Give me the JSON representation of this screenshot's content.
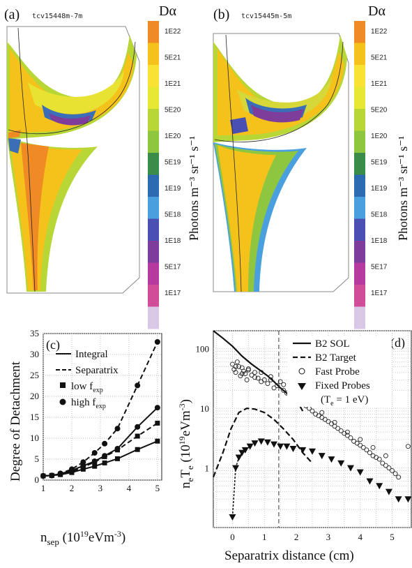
{
  "panel_a": {
    "label": "(a)",
    "shot": "tcv15448m-7m",
    "colorbar_title": "Dα",
    "colorbar_ticks": [
      "1E22",
      "5E21",
      "1E21",
      "5E20",
      "1E20",
      "5E19",
      "1E19",
      "5E18",
      "1E18",
      "5E17",
      "1E17"
    ],
    "colorbar_colors": [
      "#f08a24",
      "#f5c21b",
      "#f9e233",
      "#e6e833",
      "#b8d636",
      "#8ec63f",
      "#3a8c48",
      "#2c6bb2",
      "#4aa0de",
      "#4a4fb3",
      "#7e3c9b",
      "#b43aa0",
      "#d24d98",
      "#d9c9e6"
    ]
  },
  "panel_b": {
    "label": "(b)",
    "shot": "tcv15445m-5m",
    "colorbar_title": "Dα",
    "colorbar_ticks": [
      "1E22",
      "5E21",
      "1E21",
      "5E20",
      "1E20",
      "5E19",
      "1E19",
      "5E18",
      "1E18",
      "5E17",
      "1E17"
    ]
  },
  "colorbar_units": "Photons m⁻³ sr⁻¹ s⁻¹",
  "chart_data": [
    {
      "type": "line",
      "label": "(c)",
      "xlabel": "n_sep (10^19 eVm^-3)",
      "ylabel": "Degree of Detachment",
      "xlim": [
        1,
        5.15
      ],
      "ylim": [
        0,
        35
      ],
      "xticks": [
        1,
        2,
        3,
        4,
        5
      ],
      "yticks": [
        0,
        5,
        10,
        15,
        20,
        25,
        30,
        35
      ],
      "legend": [
        "Integral",
        "Separatrix",
        "low f_exp",
        "high f_exp"
      ],
      "series": [
        {
          "name": "high f_exp",
          "style": "dash",
          "marker": "circle",
          "x": [
            1,
            1.3,
            1.6,
            2.0,
            2.4,
            2.8,
            3.15,
            3.6,
            4.3,
            5.0
          ],
          "y": [
            1,
            1.1,
            1.6,
            2.6,
            4.3,
            6.5,
            8.7,
            12.3,
            22.6,
            33.0
          ]
        },
        {
          "name": "low f_exp",
          "style": "dash",
          "marker": "square",
          "x": [
            1,
            1.3,
            1.6,
            2.0,
            2.4,
            2.8,
            3.15,
            3.6,
            4.3,
            5.0
          ],
          "y": [
            1,
            1.1,
            1.4,
            2.0,
            3.1,
            4.3,
            5.6,
            7.2,
            10.5,
            13.6
          ]
        },
        {
          "name": "Integral",
          "style": "solid",
          "marker": "circle",
          "x": [
            1,
            1.3,
            1.6,
            2.0,
            2.4,
            2.8,
            3.15,
            3.6,
            4.3,
            5.0
          ],
          "y": [
            1,
            1.1,
            1.5,
            2.3,
            3.4,
            4.5,
            5.8,
            7.5,
            12.7,
            17.3
          ]
        },
        {
          "name": "Integral",
          "style": "solid",
          "marker": "square",
          "x": [
            1,
            1.3,
            1.6,
            2.0,
            2.4,
            2.8,
            3.15,
            3.6,
            4.3,
            5.0
          ],
          "y": [
            1,
            1.1,
            1.3,
            1.8,
            2.6,
            3.3,
            4.1,
            5.1,
            7.3,
            9.3
          ]
        }
      ]
    },
    {
      "type": "scatter",
      "label": "(d)",
      "xlabel": "Separatrix distance (cm)",
      "ylabel": "n_e T_e (10^19 eVm^-3)",
      "xlim": [
        -0.6,
        5.6
      ],
      "ylim_log": [
        0.1,
        200
      ],
      "xticks": [
        0,
        1,
        2,
        3,
        4,
        5
      ],
      "yticks": [
        1,
        10,
        100
      ],
      "scale_y": "log",
      "legend": [
        "B2 SOL",
        "B2 Target",
        "Fast Probe",
        "Fixed Probes",
        "(T_e = 1 eV)"
      ],
      "vline": 1.45,
      "series": [
        {
          "name": "B2 SOL",
          "style": "solid",
          "x": [
            -0.6,
            -0.3,
            0,
            0.3,
            0.6,
            0.9,
            1.1,
            1.3,
            1.5,
            1.7,
            1.8,
            1.9,
            2.0,
            2.2
          ],
          "y": [
            200,
            150,
            110,
            75,
            55,
            42,
            35,
            28,
            22,
            18,
            15,
            12,
            14,
            9
          ]
        },
        {
          "name": "B2 Target",
          "style": "dash",
          "x": [
            -0.6,
            -0.3,
            -0.05,
            0.2,
            0.45,
            0.7,
            1.0,
            1.3,
            1.6,
            1.9,
            2.2,
            2.5
          ],
          "y": [
            0.7,
            1.8,
            4.5,
            8.5,
            10.0,
            9.7,
            8.5,
            6.5,
            4.5,
            3.0,
            1.8,
            1.2
          ]
        },
        {
          "name": "Fixed Probes",
          "marker": "triangle-down",
          "x": [
            0.0,
            0.1,
            0.2,
            0.3,
            0.4,
            0.55,
            0.7,
            0.9,
            1.1,
            1.3,
            1.5,
            1.7,
            1.9,
            2.2,
            2.5,
            2.8,
            3.1,
            3.4,
            3.7,
            4.0,
            4.3,
            4.6,
            4.9,
            5.2,
            5.5
          ],
          "y": [
            0.15,
            1.0,
            1.5,
            1.8,
            2.0,
            2.3,
            2.6,
            2.8,
            2.7,
            2.5,
            2.3,
            2.3,
            2.1,
            2.0,
            1.9,
            1.6,
            1.4,
            1.2,
            1.0,
            0.85,
            0.6,
            0.5,
            0.4,
            0.3,
            0.3
          ]
        },
        {
          "name": "Fast Probe",
          "marker": "open-circle",
          "x": [
            0.0,
            0.05,
            0.1,
            0.15,
            0.2,
            0.25,
            0.3,
            0.35,
            0.4,
            0.45,
            0.5,
            0.6,
            0.7,
            0.8,
            0.9,
            1.0,
            1.1,
            1.2,
            1.3,
            1.4,
            1.5,
            1.6,
            1.7,
            1.8,
            1.9,
            2.0,
            2.1,
            2.2,
            2.3,
            2.4,
            2.5,
            2.6,
            2.7,
            2.8,
            2.9,
            3.0,
            3.1,
            3.2,
            3.3,
            3.4,
            3.5,
            3.6,
            3.7,
            3.8,
            3.9,
            4.0,
            4.1,
            4.2,
            4.3,
            4.4,
            4.5,
            4.6,
            4.7,
            4.8,
            4.9,
            5.0,
            5.1,
            5.2,
            5.5,
            0.1,
            0.3,
            0.5,
            0.7,
            0.9,
            1.2,
            1.6,
            2.0,
            2.4,
            2.8,
            3.2,
            3.6,
            4.0,
            4.4,
            4.8
          ],
          "y": [
            55,
            45,
            40,
            60,
            50,
            35,
            48,
            42,
            38,
            30,
            44,
            36,
            40,
            32,
            28,
            30,
            26,
            34,
            22,
            24,
            28,
            20,
            18,
            22,
            16,
            15,
            14,
            12,
            11,
            10,
            9,
            8,
            7.5,
            7,
            6.5,
            6,
            5.5,
            5,
            4.6,
            4.2,
            3.8,
            3.5,
            3.2,
            2.8,
            2.6,
            2.4,
            2.2,
            2.0,
            1.8,
            1.6,
            1.5,
            1.4,
            1.2,
            1.1,
            1.0,
            0.9,
            0.8,
            0.7,
            2.3,
            50,
            38,
            46,
            33,
            40,
            30,
            25,
            18,
            13,
            8.5,
            5.8,
            4.0,
            3.0,
            2.2,
            1.6
          ]
        }
      ],
      "legend_header": "B2 SOL"
    }
  ]
}
